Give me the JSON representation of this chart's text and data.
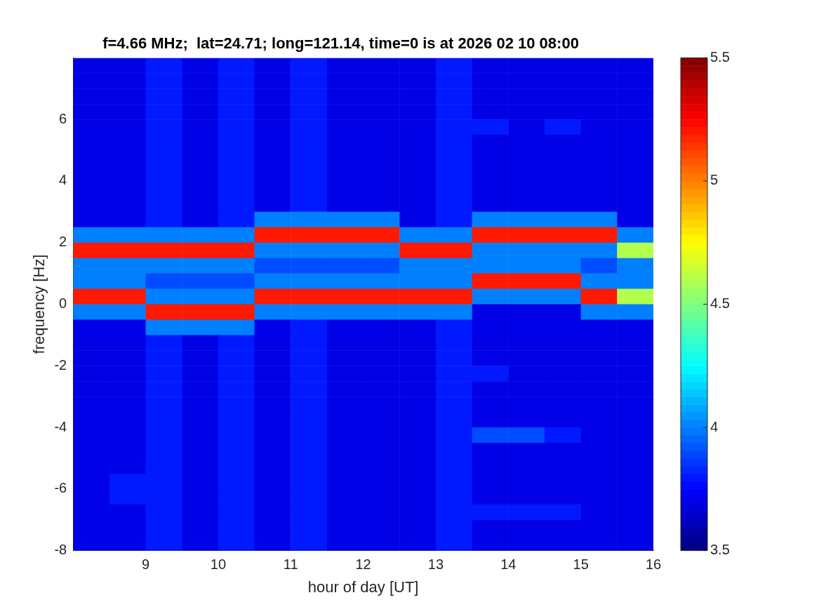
{
  "chart_data": {
    "type": "heatmap",
    "title": "f=4.66 MHz;  lat=24.71; long=121.14, time=0 is at 2026 02 10 08:00",
    "xlabel": "hour of day [UT]",
    "ylabel": "frequency [Hz]",
    "x": [
      8.25,
      8.75,
      9.25,
      9.75,
      10.25,
      10.75,
      11.25,
      11.75,
      12.25,
      12.75,
      13.25,
      13.75,
      14.25,
      14.75,
      15.25,
      15.75
    ],
    "y": [
      7.75,
      7.25,
      6.75,
      6.25,
      5.75,
      5.25,
      4.75,
      4.25,
      3.75,
      3.25,
      2.75,
      2.25,
      1.75,
      1.25,
      0.75,
      0.25,
      -0.25,
      -0.75,
      -1.25,
      -1.75,
      -2.25,
      -2.75,
      -3.25,
      -3.75,
      -4.25,
      -4.75,
      -5.25,
      -5.75,
      -6.25,
      -6.75,
      -7.25,
      -7.75
    ],
    "cells": [
      [
        3.7,
        3.7,
        3.8,
        3.7,
        3.8,
        3.7,
        3.8,
        3.7,
        3.7,
        3.7,
        3.8,
        3.7,
        3.7,
        3.7,
        3.7,
        3.7
      ],
      [
        3.7,
        3.7,
        3.8,
        3.7,
        3.8,
        3.7,
        3.8,
        3.7,
        3.7,
        3.7,
        3.8,
        3.7,
        3.7,
        3.7,
        3.7,
        3.7
      ],
      [
        3.7,
        3.7,
        3.8,
        3.7,
        3.8,
        3.7,
        3.8,
        3.7,
        3.7,
        3.7,
        3.8,
        3.7,
        3.7,
        3.7,
        3.7,
        3.7
      ],
      [
        3.7,
        3.7,
        3.8,
        3.7,
        3.8,
        3.7,
        3.8,
        3.7,
        3.7,
        3.7,
        3.8,
        3.7,
        3.7,
        3.7,
        3.7,
        3.7
      ],
      [
        3.7,
        3.7,
        3.8,
        3.7,
        3.8,
        3.7,
        3.8,
        3.7,
        3.7,
        3.7,
        3.8,
        3.8,
        3.7,
        3.8,
        3.7,
        3.7
      ],
      [
        3.7,
        3.7,
        3.8,
        3.7,
        3.8,
        3.7,
        3.8,
        3.7,
        3.7,
        3.7,
        3.8,
        3.7,
        3.7,
        3.7,
        3.7,
        3.7
      ],
      [
        3.7,
        3.7,
        3.8,
        3.7,
        3.8,
        3.7,
        3.8,
        3.7,
        3.7,
        3.7,
        3.8,
        3.7,
        3.7,
        3.7,
        3.7,
        3.7
      ],
      [
        3.7,
        3.7,
        3.8,
        3.7,
        3.8,
        3.7,
        3.8,
        3.7,
        3.7,
        3.7,
        3.8,
        3.7,
        3.7,
        3.7,
        3.7,
        3.7
      ],
      [
        3.7,
        3.7,
        3.8,
        3.7,
        3.8,
        3.7,
        3.8,
        3.7,
        3.7,
        3.7,
        3.8,
        3.7,
        3.7,
        3.7,
        3.7,
        3.7
      ],
      [
        3.7,
        3.7,
        3.8,
        3.7,
        3.8,
        3.7,
        3.8,
        3.7,
        3.7,
        3.7,
        3.8,
        3.7,
        3.7,
        3.7,
        3.7,
        3.7
      ],
      [
        3.7,
        3.7,
        3.8,
        3.7,
        3.8,
        4.0,
        4.0,
        4.0,
        4.0,
        3.7,
        3.8,
        4.0,
        4.0,
        4.0,
        4.0,
        3.7
      ],
      [
        4.0,
        4.0,
        4.0,
        4.0,
        4.0,
        5.2,
        5.2,
        5.2,
        5.2,
        4.0,
        4.0,
        5.2,
        5.2,
        5.2,
        5.2,
        4.0
      ],
      [
        5.2,
        5.2,
        5.2,
        5.2,
        5.2,
        4.0,
        4.0,
        4.0,
        4.0,
        5.2,
        5.2,
        4.0,
        4.0,
        4.0,
        4.0,
        4.6
      ],
      [
        4.0,
        4.0,
        4.0,
        4.0,
        4.0,
        3.9,
        3.9,
        3.9,
        3.9,
        4.0,
        4.0,
        4.0,
        4.0,
        4.0,
        3.9,
        4.0
      ],
      [
        4.0,
        4.0,
        3.9,
        3.9,
        3.9,
        4.0,
        4.0,
        4.0,
        4.0,
        4.0,
        4.0,
        5.2,
        5.2,
        5.2,
        4.0,
        4.0
      ],
      [
        5.2,
        5.2,
        4.0,
        4.0,
        4.0,
        5.2,
        5.2,
        5.2,
        5.2,
        5.2,
        5.2,
        4.0,
        4.0,
        4.0,
        5.2,
        4.6
      ],
      [
        4.0,
        4.0,
        5.2,
        5.2,
        5.2,
        4.0,
        4.0,
        4.0,
        4.0,
        4.0,
        4.0,
        3.7,
        3.7,
        3.7,
        4.0,
        4.0
      ],
      [
        3.7,
        3.7,
        4.0,
        4.0,
        4.0,
        3.7,
        3.8,
        3.7,
        3.7,
        3.7,
        3.8,
        3.7,
        3.7,
        3.7,
        3.7,
        3.7
      ],
      [
        3.7,
        3.7,
        3.8,
        3.7,
        3.8,
        3.7,
        3.8,
        3.7,
        3.7,
        3.7,
        3.8,
        3.7,
        3.7,
        3.7,
        3.7,
        3.7
      ],
      [
        3.7,
        3.7,
        3.8,
        3.7,
        3.8,
        3.7,
        3.8,
        3.7,
        3.7,
        3.7,
        3.8,
        3.7,
        3.7,
        3.7,
        3.7,
        3.7
      ],
      [
        3.7,
        3.7,
        3.8,
        3.7,
        3.8,
        3.7,
        3.8,
        3.7,
        3.7,
        3.7,
        3.8,
        3.8,
        3.7,
        3.7,
        3.7,
        3.7
      ],
      [
        3.7,
        3.7,
        3.8,
        3.7,
        3.8,
        3.7,
        3.8,
        3.7,
        3.7,
        3.7,
        3.8,
        3.7,
        3.7,
        3.7,
        3.7,
        3.7
      ],
      [
        3.7,
        3.7,
        3.8,
        3.7,
        3.8,
        3.7,
        3.8,
        3.7,
        3.7,
        3.7,
        3.8,
        3.7,
        3.7,
        3.7,
        3.7,
        3.7
      ],
      [
        3.7,
        3.7,
        3.8,
        3.7,
        3.8,
        3.7,
        3.8,
        3.7,
        3.7,
        3.7,
        3.8,
        3.7,
        3.7,
        3.7,
        3.7,
        3.7
      ],
      [
        3.7,
        3.7,
        3.8,
        3.7,
        3.8,
        3.7,
        3.8,
        3.7,
        3.7,
        3.7,
        3.8,
        3.9,
        3.9,
        3.8,
        3.7,
        3.7
      ],
      [
        3.7,
        3.7,
        3.8,
        3.7,
        3.8,
        3.7,
        3.8,
        3.7,
        3.7,
        3.7,
        3.8,
        3.7,
        3.7,
        3.7,
        3.7,
        3.7
      ],
      [
        3.7,
        3.7,
        3.8,
        3.7,
        3.8,
        3.7,
        3.8,
        3.7,
        3.7,
        3.7,
        3.8,
        3.7,
        3.7,
        3.7,
        3.7,
        3.7
      ],
      [
        3.7,
        3.8,
        3.8,
        3.7,
        3.8,
        3.7,
        3.8,
        3.7,
        3.7,
        3.7,
        3.8,
        3.7,
        3.7,
        3.7,
        3.7,
        3.7
      ],
      [
        3.7,
        3.8,
        3.8,
        3.7,
        3.8,
        3.7,
        3.8,
        3.7,
        3.7,
        3.7,
        3.8,
        3.7,
        3.7,
        3.7,
        3.7,
        3.7
      ],
      [
        3.7,
        3.7,
        3.8,
        3.7,
        3.8,
        3.7,
        3.8,
        3.7,
        3.7,
        3.7,
        3.8,
        3.8,
        3.8,
        3.8,
        3.7,
        3.7
      ],
      [
        3.7,
        3.7,
        3.8,
        3.7,
        3.8,
        3.7,
        3.8,
        3.7,
        3.7,
        3.7,
        3.8,
        3.7,
        3.7,
        3.7,
        3.7,
        3.7
      ],
      [
        3.7,
        3.7,
        3.8,
        3.7,
        3.8,
        3.7,
        3.8,
        3.7,
        3.7,
        3.7,
        3.8,
        3.7,
        3.7,
        3.7,
        3.7,
        3.7
      ]
    ],
    "xlim": [
      8,
      16
    ],
    "xticks": [
      9,
      10,
      11,
      12,
      13,
      14,
      15,
      16
    ],
    "ylim": [
      -8,
      8
    ],
    "yticks": [
      -8,
      -6,
      -4,
      -2,
      0,
      2,
      4,
      6
    ],
    "clim": [
      3.5,
      5.5
    ],
    "cticks": [
      3.5,
      4,
      4.5,
      5,
      5.5
    ],
    "grid": false,
    "legend": false
  }
}
